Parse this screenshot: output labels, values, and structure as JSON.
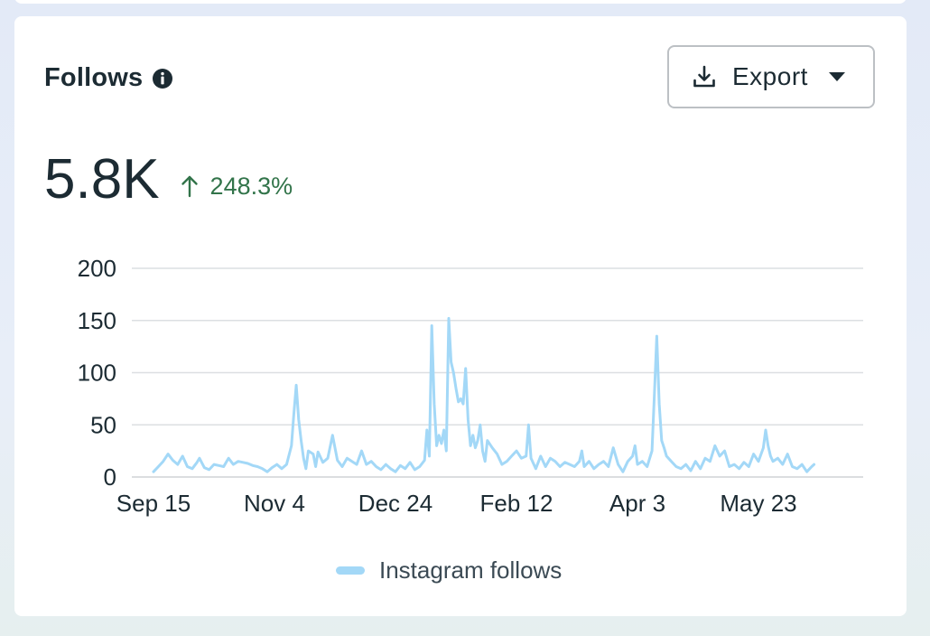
{
  "card": {
    "title": "Follows",
    "info_icon": "info-circle-icon",
    "export_label": "Export",
    "export_icon": "download-icon",
    "export_caret": "caret-down-icon",
    "metric_value": "5.8K",
    "trend_icon": "arrow-up-icon",
    "trend_value": "248.3%",
    "trend_color": "#32744a"
  },
  "chart_data": {
    "type": "line",
    "title": "",
    "xlabel": "",
    "ylabel": "",
    "ylim": [
      0,
      200
    ],
    "yticks": [
      "0",
      "50",
      "100",
      "150",
      "200"
    ],
    "ytick_values": [
      0,
      50,
      100,
      150,
      200
    ],
    "xticks": [
      "Sep 15",
      "Nov 4",
      "Dec 24",
      "Feb 12",
      "Apr 3",
      "May 23"
    ],
    "xtick_days": [
      0,
      50,
      100,
      150,
      200,
      250
    ],
    "grid": true,
    "legend_position": "bottom-center",
    "series": [
      {
        "name": "Instagram follows",
        "color": "#a3d8f7",
        "points": [
          [
            0,
            5
          ],
          [
            2,
            10
          ],
          [
            4,
            15
          ],
          [
            6,
            22
          ],
          [
            8,
            16
          ],
          [
            10,
            12
          ],
          [
            12,
            20
          ],
          [
            14,
            10
          ],
          [
            16,
            8
          ],
          [
            18,
            14
          ],
          [
            19,
            18
          ],
          [
            21,
            9
          ],
          [
            23,
            7
          ],
          [
            25,
            12
          ],
          [
            27,
            11
          ],
          [
            29,
            10
          ],
          [
            31,
            18
          ],
          [
            33,
            12
          ],
          [
            35,
            15
          ],
          [
            37,
            14
          ],
          [
            39,
            13
          ],
          [
            41,
            11
          ],
          [
            43,
            10
          ],
          [
            45,
            8
          ],
          [
            47,
            5
          ],
          [
            49,
            9
          ],
          [
            51,
            12
          ],
          [
            53,
            8
          ],
          [
            55,
            12
          ],
          [
            57,
            30
          ],
          [
            58,
            60
          ],
          [
            59,
            88
          ],
          [
            60,
            55
          ],
          [
            61,
            35
          ],
          [
            62,
            18
          ],
          [
            63,
            8
          ],
          [
            64,
            25
          ],
          [
            66,
            22
          ],
          [
            67,
            10
          ],
          [
            68,
            24
          ],
          [
            70,
            14
          ],
          [
            72,
            18
          ],
          [
            74,
            40
          ],
          [
            75,
            28
          ],
          [
            76,
            16
          ],
          [
            78,
            10
          ],
          [
            80,
            18
          ],
          [
            82,
            15
          ],
          [
            84,
            12
          ],
          [
            86,
            25
          ],
          [
            88,
            12
          ],
          [
            90,
            15
          ],
          [
            92,
            10
          ],
          [
            94,
            7
          ],
          [
            96,
            12
          ],
          [
            98,
            8
          ],
          [
            100,
            5
          ],
          [
            102,
            11
          ],
          [
            104,
            8
          ],
          [
            106,
            14
          ],
          [
            108,
            7
          ],
          [
            110,
            10
          ],
          [
            112,
            16
          ],
          [
            113,
            45
          ],
          [
            114,
            20
          ],
          [
            115,
            145
          ],
          [
            116,
            70
          ],
          [
            117,
            30
          ],
          [
            118,
            40
          ],
          [
            119,
            32
          ],
          [
            120,
            45
          ],
          [
            121,
            25
          ],
          [
            122,
            152
          ],
          [
            123,
            110
          ],
          [
            124,
            100
          ],
          [
            125,
            85
          ],
          [
            126,
            72
          ],
          [
            127,
            75
          ],
          [
            128,
            70
          ],
          [
            129,
            104
          ],
          [
            130,
            55
          ],
          [
            131,
            30
          ],
          [
            132,
            40
          ],
          [
            133,
            28
          ],
          [
            134,
            35
          ],
          [
            135,
            50
          ],
          [
            136,
            25
          ],
          [
            137,
            15
          ],
          [
            138,
            35
          ],
          [
            140,
            28
          ],
          [
            142,
            22
          ],
          [
            144,
            12
          ],
          [
            146,
            15
          ],
          [
            148,
            20
          ],
          [
            150,
            25
          ],
          [
            152,
            18
          ],
          [
            154,
            20
          ],
          [
            155,
            50
          ],
          [
            156,
            18
          ],
          [
            158,
            8
          ],
          [
            160,
            20
          ],
          [
            162,
            10
          ],
          [
            164,
            18
          ],
          [
            166,
            15
          ],
          [
            168,
            10
          ],
          [
            170,
            14
          ],
          [
            172,
            12
          ],
          [
            174,
            10
          ],
          [
            176,
            15
          ],
          [
            177,
            25
          ],
          [
            178,
            10
          ],
          [
            180,
            15
          ],
          [
            182,
            8
          ],
          [
            184,
            12
          ],
          [
            186,
            15
          ],
          [
            188,
            10
          ],
          [
            190,
            28
          ],
          [
            192,
            12
          ],
          [
            194,
            5
          ],
          [
            196,
            15
          ],
          [
            198,
            20
          ],
          [
            199,
            30
          ],
          [
            200,
            12
          ],
          [
            202,
            15
          ],
          [
            204,
            10
          ],
          [
            206,
            25
          ],
          [
            207,
            80
          ],
          [
            208,
            135
          ],
          [
            209,
            70
          ],
          [
            210,
            35
          ],
          [
            211,
            28
          ],
          [
            212,
            20
          ],
          [
            214,
            15
          ],
          [
            216,
            10
          ],
          [
            218,
            8
          ],
          [
            220,
            12
          ],
          [
            222,
            6
          ],
          [
            224,
            15
          ],
          [
            226,
            8
          ],
          [
            228,
            18
          ],
          [
            230,
            15
          ],
          [
            232,
            30
          ],
          [
            234,
            20
          ],
          [
            236,
            25
          ],
          [
            238,
            10
          ],
          [
            240,
            12
          ],
          [
            242,
            8
          ],
          [
            244,
            14
          ],
          [
            246,
            10
          ],
          [
            248,
            22
          ],
          [
            250,
            15
          ],
          [
            252,
            28
          ],
          [
            253,
            45
          ],
          [
            254,
            30
          ],
          [
            255,
            20
          ],
          [
            256,
            15
          ],
          [
            258,
            18
          ],
          [
            260,
            12
          ],
          [
            262,
            22
          ],
          [
            264,
            10
          ],
          [
            266,
            8
          ],
          [
            268,
            12
          ],
          [
            270,
            5
          ],
          [
            272,
            10
          ],
          [
            273,
            12
          ]
        ]
      }
    ]
  }
}
